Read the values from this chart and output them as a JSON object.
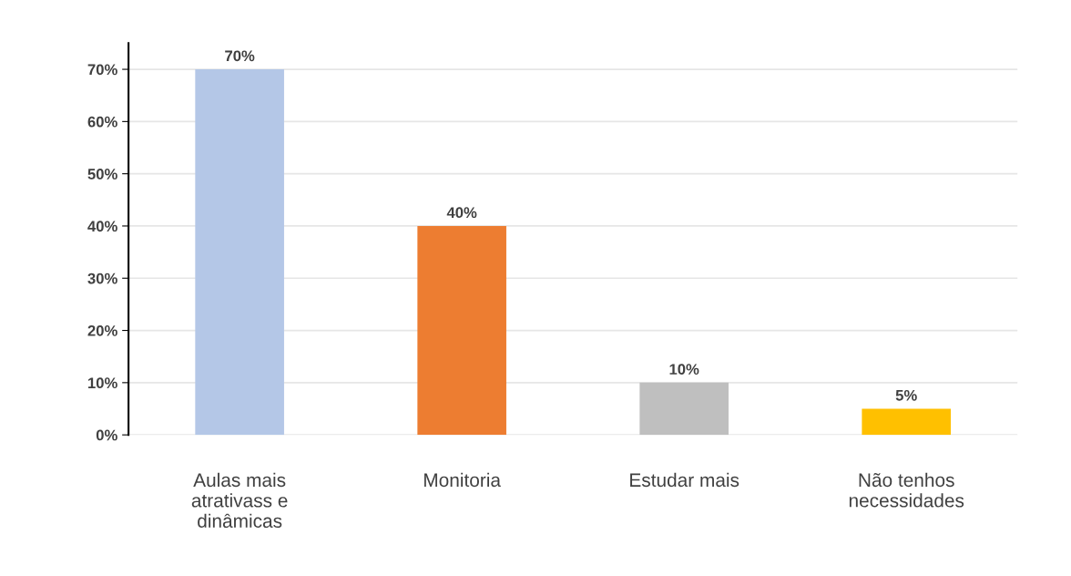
{
  "chart_data": {
    "type": "bar",
    "categories": [
      "Aulas mais\natrativass e\ndinâmicas",
      "Monitoria",
      "Estudar mais",
      "Não tenhos\nnecessidades"
    ],
    "values": [
      70,
      40,
      10,
      5
    ],
    "colors": [
      "#b4c7e7",
      "#ed7d31",
      "#bfbfbf",
      "#ffc000"
    ],
    "value_labels": [
      "70%",
      "40%",
      "10%",
      "5%"
    ],
    "ylim": [
      0,
      75
    ],
    "yticks": [
      {
        "value": 0,
        "label": "0%"
      },
      {
        "value": 10,
        "label": "10%"
      },
      {
        "value": 20,
        "label": "20%"
      },
      {
        "value": 30,
        "label": "30%"
      },
      {
        "value": 40,
        "label": "40%"
      },
      {
        "value": 50,
        "label": "50%"
      },
      {
        "value": 60,
        "label": "60%"
      },
      {
        "value": 70,
        "label": "70%"
      }
    ],
    "grid": "y",
    "legend": false
  }
}
